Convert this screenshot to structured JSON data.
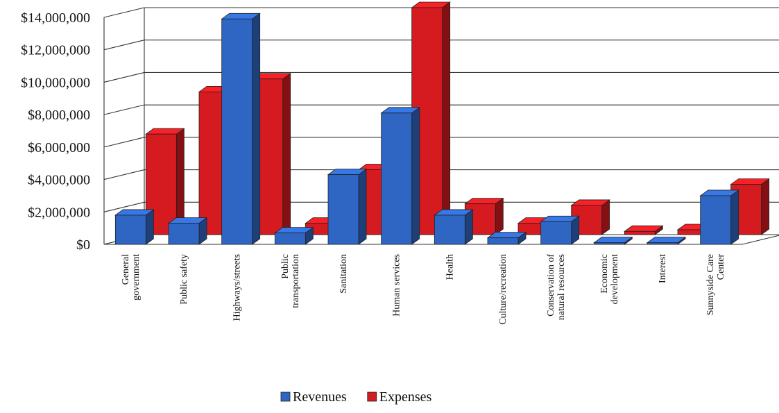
{
  "chart_data": {
    "type": "bar",
    "categories": [
      [
        "General",
        "government"
      ],
      [
        "Public safety"
      ],
      [
        "Highways/streets"
      ],
      [
        "Public",
        "transportation"
      ],
      [
        "Sanitation"
      ],
      [
        "Human services"
      ],
      [
        "Health"
      ],
      [
        "Culture/recreation"
      ],
      [
        "Conservation of",
        "natural resources"
      ],
      [
        "Economic",
        "development"
      ],
      [
        "Interest"
      ],
      [
        "Sunnyside Care",
        "Center"
      ]
    ],
    "series": [
      {
        "name": "Revenues",
        "color": "#2f66c4",
        "values": [
          1800000,
          1300000,
          13900000,
          700000,
          4300000,
          8100000,
          1800000,
          400000,
          1400000,
          100000,
          100000,
          3000000
        ]
      },
      {
        "name": "Expenses",
        "color": "#d51a20",
        "values": [
          6200000,
          8800000,
          9600000,
          700000,
          4000000,
          14000000,
          1900000,
          700000,
          1800000,
          200000,
          300000,
          3100000
        ]
      }
    ],
    "y_ticks": [
      "$0",
      "$2,000,000",
      "$4,000,000",
      "$6,000,000",
      "$8,000,000",
      "$10,000,000",
      "$12,000,000",
      "$14,000,000"
    ],
    "ylim": [
      0,
      14000000
    ],
    "grid": true,
    "legend_position": "bottom",
    "title": "",
    "xlabel": "",
    "ylabel": ""
  }
}
